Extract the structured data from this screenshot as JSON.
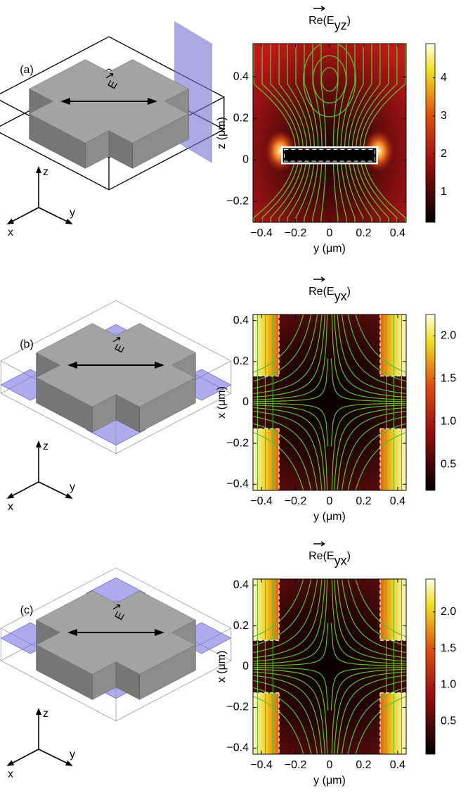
{
  "panels": [
    {
      "label": "(a)",
      "field": "E",
      "axes": {
        "z": "z",
        "x": "x",
        "y": "y"
      }
    },
    {
      "label": "(b)",
      "field": "E",
      "axes": {
        "z": "z",
        "x": "x",
        "y": "y"
      }
    },
    {
      "label": "(c)",
      "field": "E",
      "axes": {
        "z": "z",
        "x": "x",
        "y": "y"
      }
    }
  ],
  "chart_data": [
    {
      "type": "heatmap",
      "title": {
        "prefix": "Re(",
        "symbol": "E",
        "subscript": "yz",
        "suffix": ")"
      },
      "xlabel": "y (μm)",
      "ylabel": "z (μm)",
      "xlim": [
        -0.45,
        0.45
      ],
      "ylim": [
        -0.3,
        0.56
      ],
      "xticks": [
        {
          "value": -0.4,
          "label": "−0.4"
        },
        {
          "value": -0.2,
          "label": "−0.2"
        },
        0,
        0.2,
        0.4
      ],
      "yticks": [
        {
          "value": -0.2,
          "label": "−0.2"
        },
        0,
        0.2,
        0.4
      ],
      "colorbar": {
        "lim": [
          0.2,
          4.9
        ],
        "ticks": [
          1,
          2,
          3,
          4
        ]
      }
    },
    {
      "type": "heatmap",
      "title": {
        "prefix": "Re(",
        "symbol": "E",
        "subscript": "yx",
        "suffix": ")"
      },
      "xlabel": "y (μm)",
      "ylabel": "x (μm)",
      "xlim": [
        -0.45,
        0.45
      ],
      "ylim": [
        -0.43,
        0.43
      ],
      "xticks": [
        {
          "value": -0.4,
          "label": "−0.4"
        },
        {
          "value": -0.2,
          "label": "−0.2"
        },
        0,
        0.2,
        0.4
      ],
      "yticks": [
        {
          "value": -0.4,
          "label": "−0.4"
        },
        {
          "value": -0.2,
          "label": "−0.2"
        },
        0,
        0.2,
        0.4
      ],
      "colorbar": {
        "lim": [
          0.2,
          2.25
        ],
        "ticks": [
          0.5,
          {
            "value": 1,
            "label": "1.0"
          },
          1.5,
          {
            "value": 2,
            "label": "2.0"
          }
        ]
      }
    },
    {
      "type": "heatmap",
      "title": {
        "prefix": "Re(",
        "symbol": "E",
        "subscript": "yx",
        "suffix": ")"
      },
      "xlabel": "y (μm)",
      "ylabel": "x (μm)",
      "xlim": [
        -0.45,
        0.45
      ],
      "ylim": [
        -0.43,
        0.43
      ],
      "xticks": [
        {
          "value": -0.4,
          "label": "−0.4"
        },
        {
          "value": -0.2,
          "label": "−0.2"
        },
        0,
        0.2,
        0.4
      ],
      "yticks": [
        {
          "value": -0.4,
          "label": "−0.4"
        },
        {
          "value": -0.2,
          "label": "−0.2"
        },
        0,
        0.2,
        0.4
      ],
      "colorbar": {
        "lim": [
          0.05,
          2.45
        ],
        "ticks": [
          0.5,
          {
            "value": 1,
            "label": "1.0"
          },
          1.5,
          {
            "value": 2,
            "label": "2.0"
          }
        ]
      }
    }
  ]
}
